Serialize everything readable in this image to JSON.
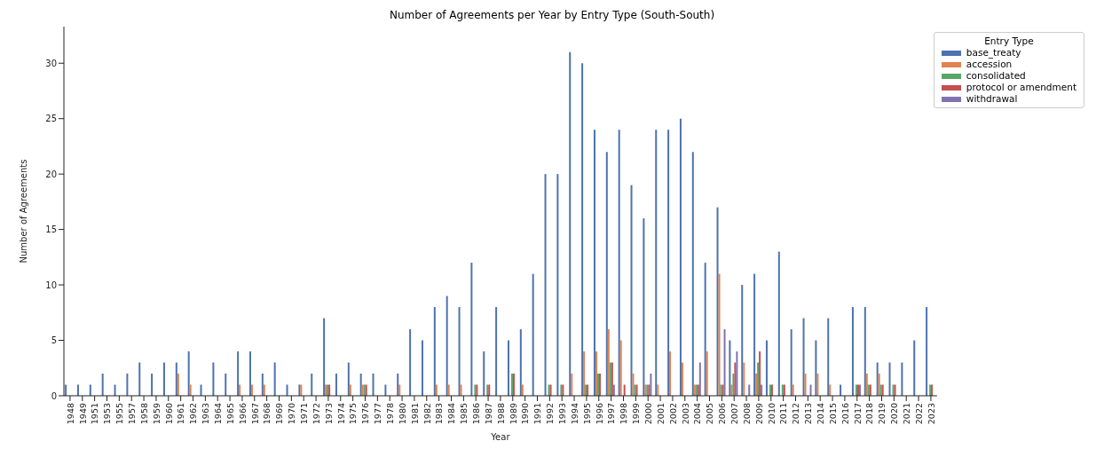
{
  "chart_data": {
    "type": "bar",
    "title": "Number of Agreements per Year by Entry Type (South-South)",
    "xlabel": "Year",
    "ylabel": "Number of Agreements",
    "legend_title": "Entry Type",
    "legend": "top right",
    "categories": [
      "1948",
      "1949",
      "1951",
      "1953",
      "1955",
      "1957",
      "1958",
      "1959",
      "1960",
      "1961",
      "1962",
      "1963",
      "1964",
      "1965",
      "1966",
      "1967",
      "1968",
      "1969",
      "1970",
      "1971",
      "1972",
      "1973",
      "1974",
      "1975",
      "1976",
      "1977",
      "1978",
      "1980",
      "1981",
      "1982",
      "1983",
      "1984",
      "1985",
      "1986",
      "1987",
      "1988",
      "1989",
      "1990",
      "1991",
      "1992",
      "1993",
      "1994",
      "1995",
      "1996",
      "1997",
      "1998",
      "1999",
      "2000",
      "2001",
      "2002",
      "2003",
      "2004",
      "2005",
      "2006",
      "2007",
      "2008",
      "2009",
      "2010",
      "2011",
      "2012",
      "2013",
      "2014",
      "2015",
      "2016",
      "2017",
      "2018",
      "2019",
      "2020",
      "2021",
      "2022",
      "2023"
    ],
    "series": [
      {
        "name": "base_treaty",
        "color": "#4c72b0",
        "values": [
          1,
          1,
          1,
          2,
          1,
          2,
          3,
          2,
          3,
          3,
          4,
          1,
          3,
          2,
          4,
          4,
          2,
          3,
          1,
          1,
          2,
          7,
          2,
          3,
          2,
          2,
          1,
          2,
          6,
          5,
          8,
          9,
          8,
          12,
          4,
          8,
          5,
          6,
          11,
          20,
          20,
          31,
          30,
          24,
          22,
          24,
          19,
          16,
          24,
          24,
          25,
          22,
          12,
          17,
          5,
          10,
          11,
          5,
          13,
          6,
          7,
          5,
          7,
          1,
          8,
          8,
          3,
          3,
          3,
          5,
          8
        ]
      },
      {
        "name": "accession",
        "color": "#dd8452",
        "values": [
          0,
          0,
          0,
          0,
          0,
          0,
          0,
          0,
          0,
          2,
          1,
          0,
          0,
          0,
          1,
          1,
          1,
          0,
          0,
          1,
          0,
          1,
          0,
          1,
          1,
          0,
          0,
          1,
          0,
          0,
          1,
          1,
          1,
          0,
          0,
          0,
          0,
          1,
          0,
          0,
          0,
          2,
          4,
          4,
          6,
          5,
          2,
          1,
          1,
          4,
          3,
          1,
          4,
          11,
          1,
          3,
          2,
          0,
          0,
          1,
          2,
          2,
          1,
          0,
          0,
          2,
          2,
          0,
          0,
          0,
          0
        ]
      },
      {
        "name": "consolidated",
        "color": "#55a868",
        "values": [
          0,
          0,
          0,
          0,
          0,
          0,
          0,
          0,
          0,
          0,
          0,
          0,
          0,
          0,
          0,
          0,
          0,
          0,
          0,
          0,
          0,
          1,
          0,
          0,
          1,
          0,
          0,
          0,
          0,
          0,
          0,
          0,
          0,
          1,
          1,
          0,
          2,
          0,
          0,
          1,
          1,
          0,
          1,
          2,
          3,
          0,
          1,
          1,
          0,
          0,
          0,
          1,
          0,
          1,
          2,
          0,
          3,
          1,
          1,
          0,
          0,
          0,
          0,
          0,
          1,
          1,
          1,
          1,
          0,
          0,
          1
        ]
      },
      {
        "name": "protocol or amendment",
        "color": "#c44e52",
        "values": [
          0,
          0,
          0,
          0,
          0,
          0,
          0,
          0,
          0,
          0,
          0,
          0,
          0,
          0,
          0,
          0,
          0,
          0,
          0,
          0,
          0,
          1,
          0,
          0,
          1,
          0,
          0,
          0,
          0,
          0,
          0,
          0,
          0,
          1,
          1,
          0,
          2,
          0,
          0,
          1,
          1,
          0,
          1,
          2,
          3,
          1,
          1,
          1,
          0,
          0,
          0,
          1,
          0,
          1,
          3,
          0,
          4,
          1,
          1,
          0,
          0,
          0,
          0,
          0,
          1,
          1,
          1,
          1,
          0,
          0,
          1
        ]
      },
      {
        "name": "withdrawal",
        "color": "#8172b3",
        "values": [
          0,
          0,
          0,
          0,
          0,
          0,
          0,
          0,
          0,
          0,
          0,
          0,
          0,
          0,
          0,
          0,
          0,
          0,
          0,
          0,
          0,
          0,
          0,
          0,
          0,
          0,
          0,
          0,
          0,
          0,
          0,
          0,
          0,
          0,
          0,
          0,
          0,
          0,
          0,
          0,
          0,
          0,
          0,
          0,
          1,
          0,
          0,
          2,
          0,
          0,
          0,
          3,
          0,
          6,
          4,
          1,
          1,
          0,
          0,
          0,
          1,
          0,
          0,
          0,
          1,
          0,
          0,
          0,
          0,
          0,
          0
        ]
      }
    ],
    "ylim": [
      0,
      33.3
    ],
    "yticks": [
      0,
      5,
      10,
      15,
      20,
      25,
      30
    ]
  }
}
